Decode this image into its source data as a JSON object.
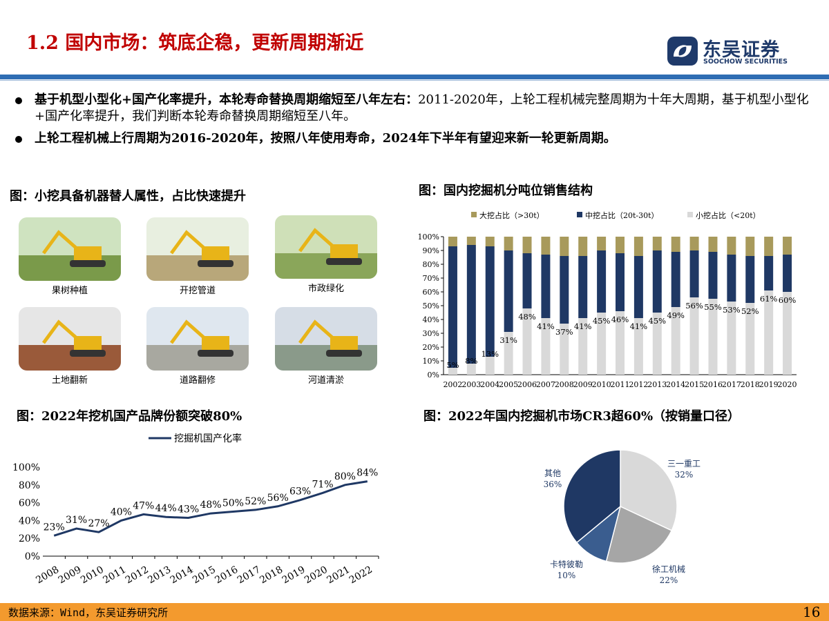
{
  "title": "1.2 国内市场：筑底企稳，更新周期渐近",
  "logo": {
    "name_cn": "东吴证券",
    "name_en": "SOOCHOW SECURITIES"
  },
  "bullets": [
    {
      "bold": "基于机型小型化+国产化率提升，本轮寿命替换周期缩短至八年左右：",
      "normal": "2011-2020年，上轮工程机械完整周期为十年大周期，基于机型小型化+国产化率提升，我们判断本轮寿命替换周期缩短至八年。"
    },
    {
      "bold": "上轮工程机械上行周期为2016-2020年，按照八年使用寿命，2024年下半年有望迎来新一轮更新周期。",
      "normal": ""
    }
  ],
  "fig1": {
    "caption": "图：小挖具备机器替人属性，占比快速提升",
    "photos": [
      "果树种植",
      "开挖管道",
      "市政绿化",
      "土地翻新",
      "道路翻修",
      "河道清淤"
    ]
  },
  "fig2": {
    "caption": "图：国内挖掘机分吨位销售结构"
  },
  "fig3": {
    "caption": "图：2022年挖机国产品牌份额突破80%"
  },
  "fig4": {
    "caption": "图：2022年国内挖掘机市场CR3超60%（按销量口径）"
  },
  "footer": {
    "source": "数据来源：Wind，东吴证券研究所",
    "page": "16"
  },
  "colors": {
    "big": "#a89a5c",
    "mid": "#1f3864",
    "small": "#d9d9d9",
    "line": "#1f3864",
    "accent_red": "#c00000",
    "footer": "#f39a2e"
  },
  "chart_data": [
    {
      "type": "bar",
      "stacked": true,
      "categories": [
        "2002",
        "2003",
        "2004",
        "2005",
        "2006",
        "2007",
        "2008",
        "2009",
        "2010",
        "2011",
        "2012",
        "2013",
        "2014",
        "2015",
        "2016",
        "2017",
        "2018",
        "2019",
        "2020"
      ],
      "series": [
        {
          "name": "小挖占比（<20t）",
          "values": [
            5,
            8,
            13,
            31,
            48,
            41,
            37,
            41,
            45,
            46,
            41,
            45,
            49,
            56,
            55,
            53,
            52,
            61,
            60
          ]
        },
        {
          "name": "中挖占比（20t-30t）",
          "values": [
            88,
            86,
            80,
            59,
            40,
            46,
            49,
            45,
            45,
            42,
            45,
            45,
            40,
            34,
            34,
            34,
            34,
            25,
            27
          ]
        },
        {
          "name": "大挖占比（>30t）",
          "values": [
            7,
            6,
            7,
            10,
            12,
            13,
            14,
            14,
            10,
            12,
            14,
            10,
            11,
            10,
            11,
            13,
            14,
            14,
            13
          ]
        }
      ],
      "data_labels": [
        "5%",
        "8%",
        "13%",
        "31%",
        "48%",
        "41%",
        "37%",
        "41%",
        "45%",
        "46%",
        "41%",
        "45%",
        "49%",
        "56%",
        "55%",
        "53%",
        "52%",
        "61%",
        "60%"
      ],
      "ylim": [
        0,
        100
      ],
      "yticks": [
        "0%",
        "10%",
        "20%",
        "30%",
        "40%",
        "50%",
        "60%",
        "70%",
        "80%",
        "90%",
        "100%"
      ],
      "legend": "top"
    },
    {
      "type": "line",
      "x": [
        "2008",
        "2009",
        "2010",
        "2011",
        "2012",
        "2013",
        "2014",
        "2015",
        "2016",
        "2017",
        "2018",
        "2019",
        "2020",
        "2021",
        "2022"
      ],
      "series": [
        {
          "name": "挖掘机国产化率",
          "values": [
            23,
            31,
            27,
            40,
            47,
            44,
            43,
            48,
            50,
            52,
            56,
            63,
            71,
            80,
            84
          ]
        }
      ],
      "data_labels": [
        "23%",
        "31%",
        "27%",
        "40%",
        "47%",
        "44%",
        "43%",
        "48%",
        "50%",
        "52%",
        "56%",
        "63%",
        "71%",
        "80%",
        "84%"
      ],
      "ylim": [
        0,
        100
      ],
      "yticks": [
        "0%",
        "20%",
        "40%",
        "60%",
        "80%",
        "100%"
      ],
      "legend": "top"
    },
    {
      "type": "pie",
      "slices": [
        {
          "label": "三一重工",
          "value": 32,
          "pct": "32%",
          "color": "#d9d9d9"
        },
        {
          "label": "徐工机械",
          "value": 22,
          "pct": "22%",
          "color": "#a6a6a6"
        },
        {
          "label": "卡特彼勒",
          "value": 10,
          "pct": "10%",
          "color": "#3a5d8f"
        },
        {
          "label": "其他",
          "value": 36,
          "pct": "36%",
          "color": "#1f3864"
        }
      ]
    }
  ]
}
